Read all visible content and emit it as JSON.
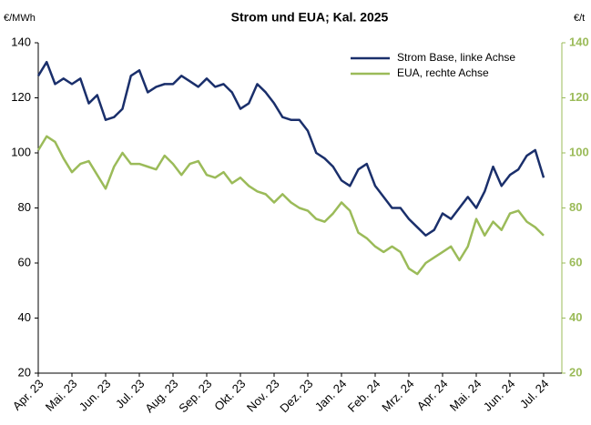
{
  "chart_data": {
    "type": "line",
    "title": "Strom und EUA; Kal. 2025",
    "y_unit": "€/MWh",
    "y2_unit": "€/t",
    "categories": [
      "Apr. 23",
      null,
      null,
      null,
      "Mai. 23",
      null,
      null,
      null,
      "Jun. 23",
      null,
      null,
      null,
      "Jul. 23",
      null,
      null,
      null,
      "Aug. 23",
      null,
      null,
      null,
      "Sep. 23",
      null,
      null,
      null,
      "Okt. 23",
      null,
      null,
      null,
      "Nov. 23",
      null,
      null,
      null,
      "Dez. 23",
      null,
      null,
      null,
      "Jan. 24",
      null,
      null,
      null,
      "Feb. 24",
      null,
      null,
      null,
      "Mrz. 24",
      null,
      null,
      null,
      "Apr. 24",
      null,
      null,
      null,
      "Mai. 24",
      null,
      null,
      null,
      "Jun. 24",
      null,
      null,
      null,
      "Jul. 24"
    ],
    "series": [
      {
        "name": "Strom Base, linke Achse",
        "color": "#1a2f6b",
        "axis": "y",
        "values": [
          128,
          133,
          125,
          127,
          125,
          127,
          118,
          121,
          112,
          113,
          116,
          128,
          130,
          122,
          124,
          125,
          125,
          128,
          126,
          124,
          127,
          124,
          125,
          122,
          116,
          118,
          125,
          122,
          118,
          113,
          112,
          112,
          108,
          100,
          98,
          95,
          90,
          88,
          94,
          96,
          88,
          84,
          80,
          80,
          76,
          73,
          70,
          72,
          78,
          76,
          80,
          84,
          80,
          86,
          95,
          88,
          92,
          94,
          99,
          101,
          91
        ]
      },
      {
        "name": "EUA, rechte Achse",
        "color": "#9bbb59",
        "axis": "y2",
        "values": [
          101,
          106,
          104,
          98,
          93,
          96,
          97,
          92,
          87,
          95,
          100,
          96,
          96,
          95,
          94,
          99,
          96,
          92,
          96,
          97,
          92,
          91,
          93,
          89,
          91,
          88,
          86,
          85,
          82,
          85,
          82,
          80,
          79,
          76,
          75,
          78,
          82,
          79,
          71,
          69,
          66,
          64,
          66,
          64,
          58,
          56,
          60,
          62,
          64,
          66,
          61,
          66,
          76,
          70,
          75,
          72,
          78,
          79,
          75,
          73,
          70
        ]
      }
    ],
    "ylim": [
      20,
      140
    ],
    "yticks": [
      20,
      40,
      60,
      80,
      100,
      120,
      140
    ],
    "y2lim": [
      20,
      140
    ],
    "y2ticks": [
      20,
      40,
      60,
      80,
      100,
      120,
      140
    ],
    "legend": "top-right"
  }
}
